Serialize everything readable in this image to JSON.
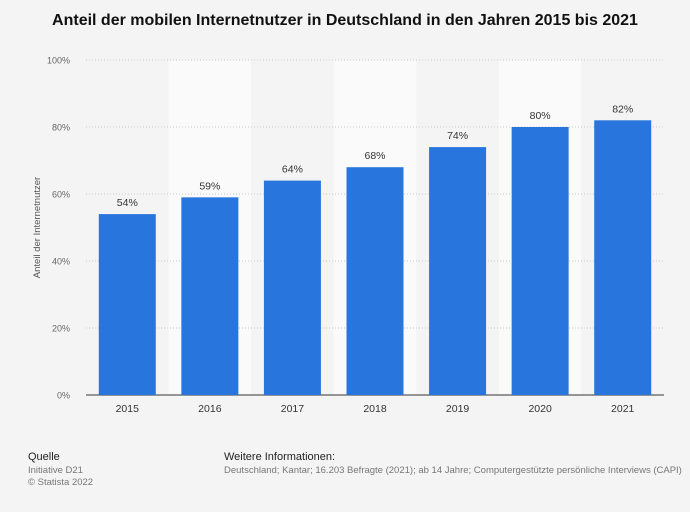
{
  "page": {
    "title": "Anteil der mobilen Internetnutzer in Deutschland in den Jahren 2015 bis 2021"
  },
  "chart_data": {
    "type": "bar",
    "categories": [
      "2015",
      "2016",
      "2017",
      "2018",
      "2019",
      "2020",
      "2021"
    ],
    "values": [
      54,
      59,
      64,
      68,
      74,
      80,
      82
    ],
    "value_labels": [
      "54%",
      "59%",
      "64%",
      "68%",
      "74%",
      "80%",
      "82%"
    ],
    "ylabel": "Anteil der Internetnutzer",
    "xlabel": "",
    "ylim": [
      0,
      100
    ],
    "yticks": [
      0,
      20,
      40,
      60,
      80,
      100
    ],
    "ytick_labels": [
      "0%",
      "20%",
      "40%",
      "60%",
      "80%",
      "100%"
    ],
    "grid": true,
    "bar_color": "#2876dd"
  },
  "footer": {
    "source_heading": "Quelle",
    "source_lines": [
      "Initiative D21",
      "© Statista 2022"
    ],
    "info_heading": "Weitere Informationen:",
    "info_text": "Deutschland; Kantar; 16.203 Befragte (2021); ab 14 Jahre; Computergestützte persönliche Interviews (CAPI)"
  }
}
